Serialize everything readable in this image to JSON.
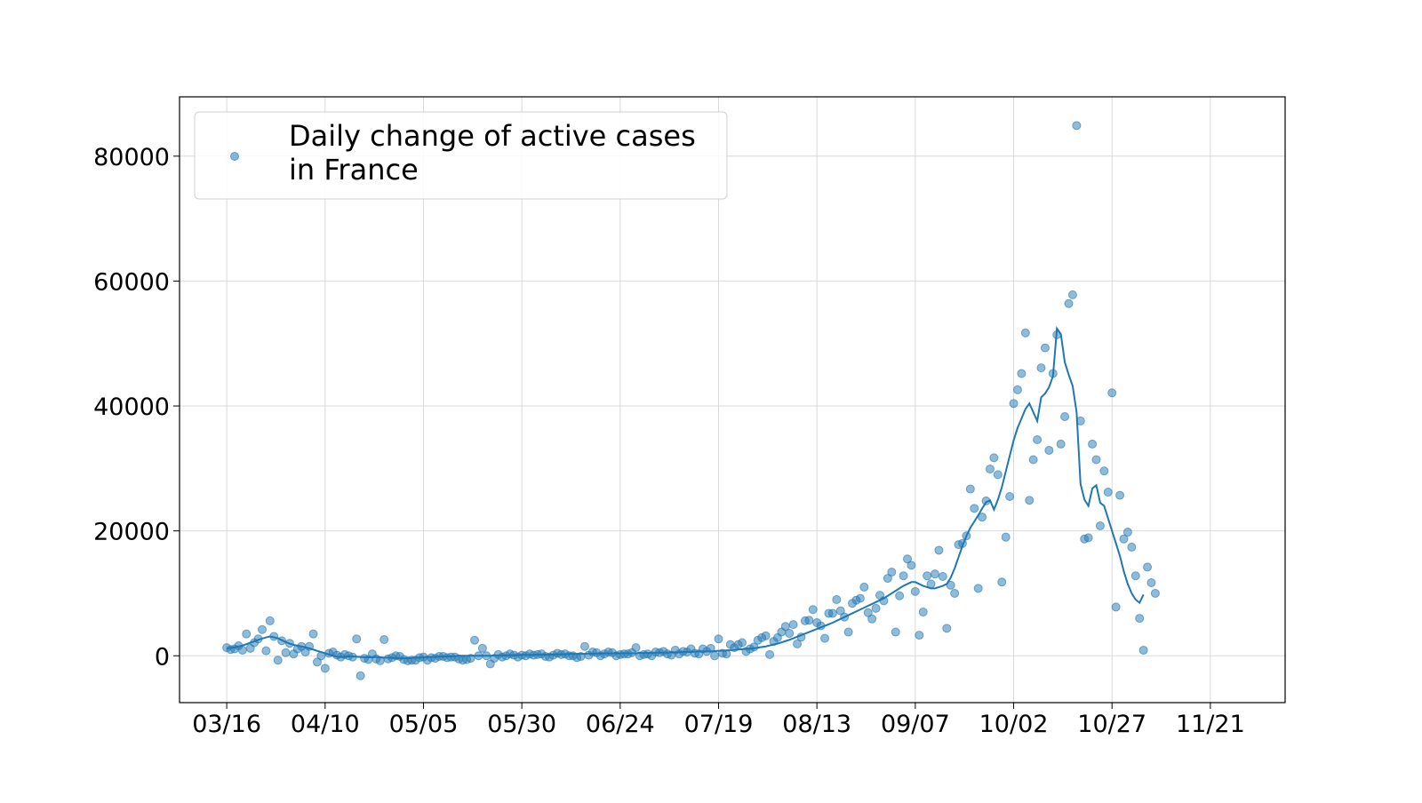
{
  "chart_data": {
    "type": "scatter",
    "legend": {
      "entries": [
        "Daily change of active cases",
        "in France"
      ],
      "placement": "upper-left"
    },
    "colors": {
      "points": "#1f77b4",
      "line": "#1f77b4"
    },
    "grid": true,
    "x_axis": {
      "start_date": "03/16",
      "ticks": [
        {
          "label": "03/16",
          "day": 0
        },
        {
          "label": "04/10",
          "day": 25
        },
        {
          "label": "05/05",
          "day": 50
        },
        {
          "label": "05/30",
          "day": 75
        },
        {
          "label": "06/24",
          "day": 100
        },
        {
          "label": "07/19",
          "day": 125
        },
        {
          "label": "08/13",
          "day": 150
        },
        {
          "label": "09/07",
          "day": 175
        },
        {
          "label": "10/02",
          "day": 200
        },
        {
          "label": "10/27",
          "day": 225
        },
        {
          "label": "11/21",
          "day": 250
        }
      ],
      "xlim": [
        -12,
        269
      ]
    },
    "y_axis": {
      "ticks": [
        0,
        20000,
        40000,
        60000,
        80000
      ],
      "ylim": [
        -7500,
        89500
      ]
    },
    "series": [
      {
        "kind": "points",
        "values": [
          1300,
          1000,
          1100,
          1600,
          900,
          3500,
          1200,
          2100,
          2700,
          4200,
          800,
          5600,
          3100,
          -700,
          2400,
          500,
          2000,
          300,
          1100,
          1500,
          600,
          1500,
          3500,
          -1000,
          0,
          -2000,
          400,
          600,
          100,
          -200,
          200,
          0,
          -200,
          2700,
          -3200,
          -400,
          -600,
          300,
          -500,
          -800,
          2600,
          -500,
          -300,
          0,
          -100,
          -600,
          -800,
          -700,
          -700,
          -300,
          -200,
          -700,
          -300,
          -400,
          -100,
          -100,
          -300,
          -200,
          -200,
          -500,
          -700,
          -600,
          -400,
          2500,
          0,
          1200,
          0,
          -1300,
          -400,
          200,
          -200,
          0,
          300,
          100,
          -200,
          100,
          0,
          300,
          100,
          200,
          300,
          -100,
          -200,
          100,
          400,
          200,
          300,
          0,
          0,
          -300,
          -100,
          1500,
          100,
          600,
          500,
          0,
          300,
          600,
          500,
          0,
          200,
          300,
          300,
          500,
          1300,
          0,
          200,
          300,
          0,
          600,
          500,
          700,
          300,
          100,
          900,
          300,
          700,
          600,
          1100,
          400,
          300,
          1100,
          700,
          1200,
          0,
          2700,
          400,
          300,
          1800,
          1300,
          1800,
          2100,
          700,
          1100,
          1400,
          2500,
          2900,
          3200,
          200,
          2300,
          2900,
          3800,
          4700,
          3600,
          5000,
          1900,
          3000,
          5600,
          5700,
          7400,
          5300,
          4800,
          2800,
          6800,
          6800,
          9000,
          7200,
          6200,
          3800,
          8400,
          8900,
          9200,
          11000,
          6900,
          5900,
          7600,
          9700,
          8800,
          12400,
          13400,
          3800,
          9600,
          12800,
          15500,
          14500,
          10300,
          3300,
          7000,
          12800,
          11500,
          13100,
          16900,
          12700,
          4400,
          11300,
          10000,
          17800,
          18000,
          19200,
          26700,
          23600,
          10800,
          22200,
          24800,
          29900,
          31700,
          29000,
          11800,
          19000,
          25500,
          40400,
          42600,
          45200,
          51700,
          24900,
          31400,
          34600,
          46100,
          49300,
          32900,
          45200,
          51400,
          33900,
          38300,
          56400,
          57800,
          84900,
          37600,
          18700,
          18900,
          33900,
          31400,
          20800,
          29600,
          26200,
          42100,
          7800,
          25700,
          18700,
          19800,
          17400,
          12800,
          6000,
          900,
          14200,
          11700,
          10000
        ]
      },
      {
        "kind": "line",
        "values": [
          1200,
          1250,
          1350,
          1500,
          1650,
          1850,
          2100,
          2300,
          2550,
          2750,
          2950,
          3100,
          2950,
          2800,
          2500,
          2200,
          1950,
          1750,
          1600,
          1500,
          1350,
          1200,
          1000,
          800,
          600,
          400,
          200,
          0,
          -150,
          -200,
          -150,
          -100,
          -100,
          -150,
          -200,
          -250,
          -250,
          -250,
          -200,
          -250,
          -300,
          -300,
          -350,
          -350,
          -400,
          -400,
          -400,
          -350,
          -300,
          -300,
          -250,
          -200,
          -200,
          -200,
          -150,
          -100,
          -100,
          -100,
          -50,
          0,
          0,
          0,
          0,
          0,
          0,
          0,
          0,
          0,
          50,
          50,
          50,
          50,
          100,
          100,
          100,
          150,
          150,
          150,
          150,
          200,
          200,
          200,
          200,
          200,
          250,
          250,
          250,
          300,
          300,
          300,
          300,
          300,
          350,
          350,
          350,
          350,
          400,
          400,
          400,
          400,
          400,
          400,
          400,
          400,
          400,
          450,
          450,
          450,
          450,
          500,
          500,
          500,
          500,
          550,
          550,
          550,
          600,
          600,
          650,
          650,
          700,
          700,
          700,
          700,
          750,
          800,
          800,
          850,
          900,
          950,
          1000,
          1050,
          1100,
          1150,
          1200,
          1300,
          1400,
          1500,
          1650,
          1800,
          1950,
          2150,
          2350,
          2550,
          2800,
          3050,
          3300,
          3550,
          3800,
          4050,
          4300,
          4550,
          4800,
          5050,
          5300,
          5600,
          5900,
          6200,
          6500,
          6800,
          7100,
          7400,
          7700,
          8000,
          8300,
          8600,
          8900,
          9200,
          9600,
          10000,
          10400,
          10800,
          11200,
          11500,
          11800,
          11800,
          11500,
          11200,
          11000,
          10800,
          10800,
          11000,
          11200,
          11500,
          12500,
          14000,
          15800,
          17600,
          19200,
          20500,
          21500,
          22500,
          23600,
          24600,
          24900,
          23400,
          25000,
          27000,
          29500,
          32000,
          34500,
          36500,
          38000,
          39500,
          40400,
          39000,
          37600,
          41400,
          42000,
          43000,
          44800,
          52400,
          51500,
          47000,
          45000,
          43200,
          39000,
          27500,
          25000,
          24000,
          26800,
          27300,
          24500,
          24000,
          22000,
          20000,
          18000,
          16000,
          13500,
          11500,
          10000,
          9000,
          8500,
          9800
        ]
      }
    ]
  }
}
